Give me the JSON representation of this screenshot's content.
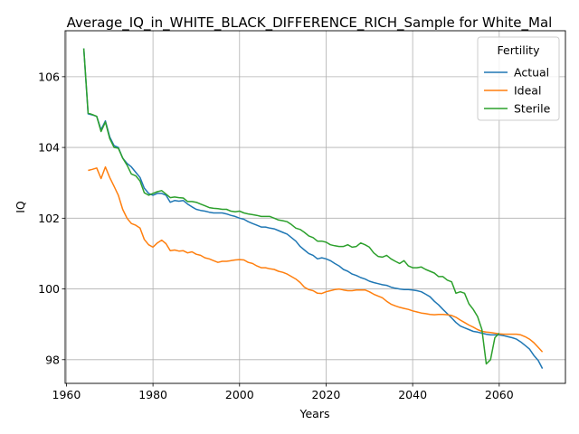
{
  "chart_data": {
    "type": "line",
    "title": "Average_IQ_in_WHITE_BLACK_DIFFERENCE_RICH_Sample for White_Mal",
    "xlabel": "Years",
    "ylabel": "IQ",
    "xlim": [
      1959.7,
      2075.3
    ],
    "ylim": [
      97.33,
      107.3
    ],
    "xticks": [
      1960,
      1980,
      2000,
      2020,
      2040,
      2060
    ],
    "yticks": [
      98,
      100,
      102,
      104,
      106
    ],
    "grid": true,
    "legend": {
      "title": "Fertility",
      "position": "top-right"
    },
    "series": [
      {
        "name": "Actual",
        "color": "#1f77b4",
        "x": [
          1964,
          1965,
          1966,
          1967,
          1968,
          1969,
          1970,
          1971,
          1972,
          1973,
          1974,
          1975,
          1976,
          1977,
          1978,
          1979,
          1980,
          1981,
          1982,
          1983,
          1984,
          1985,
          1986,
          1987,
          1988,
          1989,
          1990,
          1991,
          1992,
          1993,
          1994,
          1995,
          1996,
          1997,
          1998,
          1999,
          2000,
          2001,
          2002,
          2003,
          2004,
          2005,
          2006,
          2007,
          2008,
          2009,
          2010,
          2011,
          2012,
          2013,
          2014,
          2015,
          2016,
          2017,
          2018,
          2019,
          2020,
          2021,
          2022,
          2023,
          2024,
          2025,
          2026,
          2027,
          2028,
          2029,
          2030,
          2031,
          2032,
          2033,
          2034,
          2035,
          2036,
          2037,
          2038,
          2039,
          2040,
          2041,
          2042,
          2043,
          2044,
          2045,
          2046,
          2047,
          2048,
          2049,
          2050,
          2051,
          2052,
          2053,
          2054,
          2055,
          2056,
          2057,
          2058,
          2059,
          2060,
          2061,
          2062,
          2063,
          2064,
          2065,
          2066,
          2067,
          2068,
          2069,
          2070
        ],
        "y": [
          106.8,
          104.95,
          104.92,
          104.88,
          104.5,
          104.75,
          104.3,
          104.05,
          104.0,
          103.7,
          103.55,
          103.45,
          103.3,
          103.15,
          102.85,
          102.7,
          102.65,
          102.7,
          102.7,
          102.65,
          102.45,
          102.5,
          102.48,
          102.5,
          102.4,
          102.32,
          102.25,
          102.22,
          102.2,
          102.17,
          102.15,
          102.15,
          102.15,
          102.12,
          102.08,
          102.05,
          102.0,
          101.97,
          101.9,
          101.85,
          101.8,
          101.75,
          101.75,
          101.72,
          101.7,
          101.65,
          101.6,
          101.55,
          101.45,
          101.35,
          101.2,
          101.1,
          101.0,
          100.95,
          100.85,
          100.88,
          100.85,
          100.8,
          100.72,
          100.65,
          100.55,
          100.5,
          100.42,
          100.38,
          100.32,
          100.28,
          100.22,
          100.18,
          100.15,
          100.12,
          100.1,
          100.05,
          100.02,
          100.0,
          99.98,
          99.98,
          99.97,
          99.95,
          99.92,
          99.85,
          99.78,
          99.65,
          99.55,
          99.42,
          99.3,
          99.18,
          99.05,
          98.95,
          98.9,
          98.85,
          98.8,
          98.78,
          98.75,
          98.72,
          98.7,
          98.7,
          98.7,
          98.68,
          98.65,
          98.62,
          98.58,
          98.5,
          98.4,
          98.3,
          98.12,
          97.98,
          97.75
        ]
      },
      {
        "name": "Ideal",
        "color": "#ff7f0e",
        "x": [
          1965,
          1966,
          1967,
          1968,
          1969,
          1970,
          1971,
          1972,
          1973,
          1974,
          1975,
          1976,
          1977,
          1978,
          1979,
          1980,
          1981,
          1982,
          1983,
          1984,
          1985,
          1986,
          1987,
          1988,
          1989,
          1990,
          1991,
          1992,
          1993,
          1994,
          1995,
          1996,
          1997,
          1998,
          1999,
          2000,
          2001,
          2002,
          2003,
          2004,
          2005,
          2006,
          2007,
          2008,
          2009,
          2010,
          2011,
          2012,
          2013,
          2014,
          2015,
          2016,
          2017,
          2018,
          2019,
          2020,
          2021,
          2022,
          2023,
          2024,
          2025,
          2026,
          2027,
          2028,
          2029,
          2030,
          2031,
          2032,
          2033,
          2034,
          2035,
          2036,
          2037,
          2038,
          2039,
          2040,
          2041,
          2042,
          2043,
          2044,
          2045,
          2046,
          2047,
          2048,
          2049,
          2050,
          2051,
          2052,
          2053,
          2054,
          2055,
          2056,
          2057,
          2058,
          2059,
          2060,
          2061,
          2062,
          2063,
          2064,
          2065,
          2066,
          2067,
          2068,
          2069,
          2070
        ],
        "y": [
          103.35,
          103.38,
          103.42,
          103.12,
          103.45,
          103.15,
          102.9,
          102.65,
          102.25,
          102.0,
          101.85,
          101.8,
          101.72,
          101.4,
          101.25,
          101.18,
          101.3,
          101.38,
          101.28,
          101.08,
          101.1,
          101.07,
          101.08,
          101.02,
          101.05,
          100.98,
          100.95,
          100.88,
          100.85,
          100.8,
          100.75,
          100.78,
          100.78,
          100.8,
          100.82,
          100.83,
          100.82,
          100.75,
          100.72,
          100.65,
          100.6,
          100.6,
          100.57,
          100.55,
          100.5,
          100.47,
          100.42,
          100.35,
          100.28,
          100.18,
          100.05,
          99.98,
          99.95,
          99.88,
          99.87,
          99.92,
          99.95,
          99.98,
          100.0,
          99.97,
          99.95,
          99.95,
          99.97,
          99.97,
          99.97,
          99.92,
          99.85,
          99.8,
          99.75,
          99.65,
          99.57,
          99.52,
          99.48,
          99.45,
          99.42,
          99.38,
          99.35,
          99.32,
          99.3,
          99.28,
          99.27,
          99.28,
          99.28,
          99.27,
          99.25,
          99.2,
          99.12,
          99.05,
          98.98,
          98.92,
          98.85,
          98.8,
          98.78,
          98.77,
          98.75,
          98.73,
          98.72,
          98.72,
          98.72,
          98.72,
          98.7,
          98.65,
          98.58,
          98.48,
          98.35,
          98.22
        ]
      },
      {
        "name": "Sterile",
        "color": "#2ca02c",
        "x": [
          1964,
          1965,
          1966,
          1967,
          1968,
          1969,
          1970,
          1971,
          1972,
          1973,
          1974,
          1975,
          1976,
          1977,
          1978,
          1979,
          1980,
          1981,
          1982,
          1983,
          1984,
          1985,
          1986,
          1987,
          1988,
          1989,
          1990,
          1991,
          1992,
          1993,
          1994,
          1995,
          1996,
          1997,
          1998,
          1999,
          2000,
          2001,
          2002,
          2003,
          2004,
          2005,
          2006,
          2007,
          2008,
          2009,
          2010,
          2011,
          2012,
          2013,
          2014,
          2015,
          2016,
          2017,
          2018,
          2019,
          2020,
          2021,
          2022,
          2023,
          2024,
          2025,
          2026,
          2027,
          2028,
          2029,
          2030,
          2031,
          2032,
          2033,
          2034,
          2035,
          2036,
          2037,
          2038,
          2039,
          2040,
          2041,
          2042,
          2043,
          2044,
          2045,
          2046,
          2047,
          2048,
          2049,
          2050,
          2051,
          2052,
          2053,
          2054,
          2055,
          2056,
          2057,
          2058,
          2059,
          2060
        ],
        "y": [
          106.8,
          104.97,
          104.93,
          104.88,
          104.45,
          104.72,
          104.25,
          104.0,
          103.98,
          103.7,
          103.5,
          103.25,
          103.2,
          103.05,
          102.72,
          102.65,
          102.7,
          102.75,
          102.78,
          102.68,
          102.58,
          102.6,
          102.58,
          102.57,
          102.47,
          102.47,
          102.45,
          102.4,
          102.35,
          102.3,
          102.28,
          102.27,
          102.25,
          102.25,
          102.2,
          102.18,
          102.2,
          102.15,
          102.12,
          102.1,
          102.08,
          102.05,
          102.05,
          102.05,
          102.0,
          101.95,
          101.93,
          101.9,
          101.82,
          101.72,
          101.68,
          101.6,
          101.5,
          101.45,
          101.35,
          101.35,
          101.32,
          101.25,
          101.22,
          101.2,
          101.2,
          101.25,
          101.18,
          101.2,
          101.3,
          101.25,
          101.18,
          101.02,
          100.92,
          100.9,
          100.95,
          100.85,
          100.78,
          100.72,
          100.8,
          100.65,
          100.6,
          100.6,
          100.62,
          100.55,
          100.5,
          100.45,
          100.35,
          100.35,
          100.25,
          100.2,
          99.88,
          99.92,
          99.88,
          99.58,
          99.42,
          99.22,
          98.85,
          97.88,
          98.0,
          98.62,
          98.75
        ]
      }
    ]
  }
}
